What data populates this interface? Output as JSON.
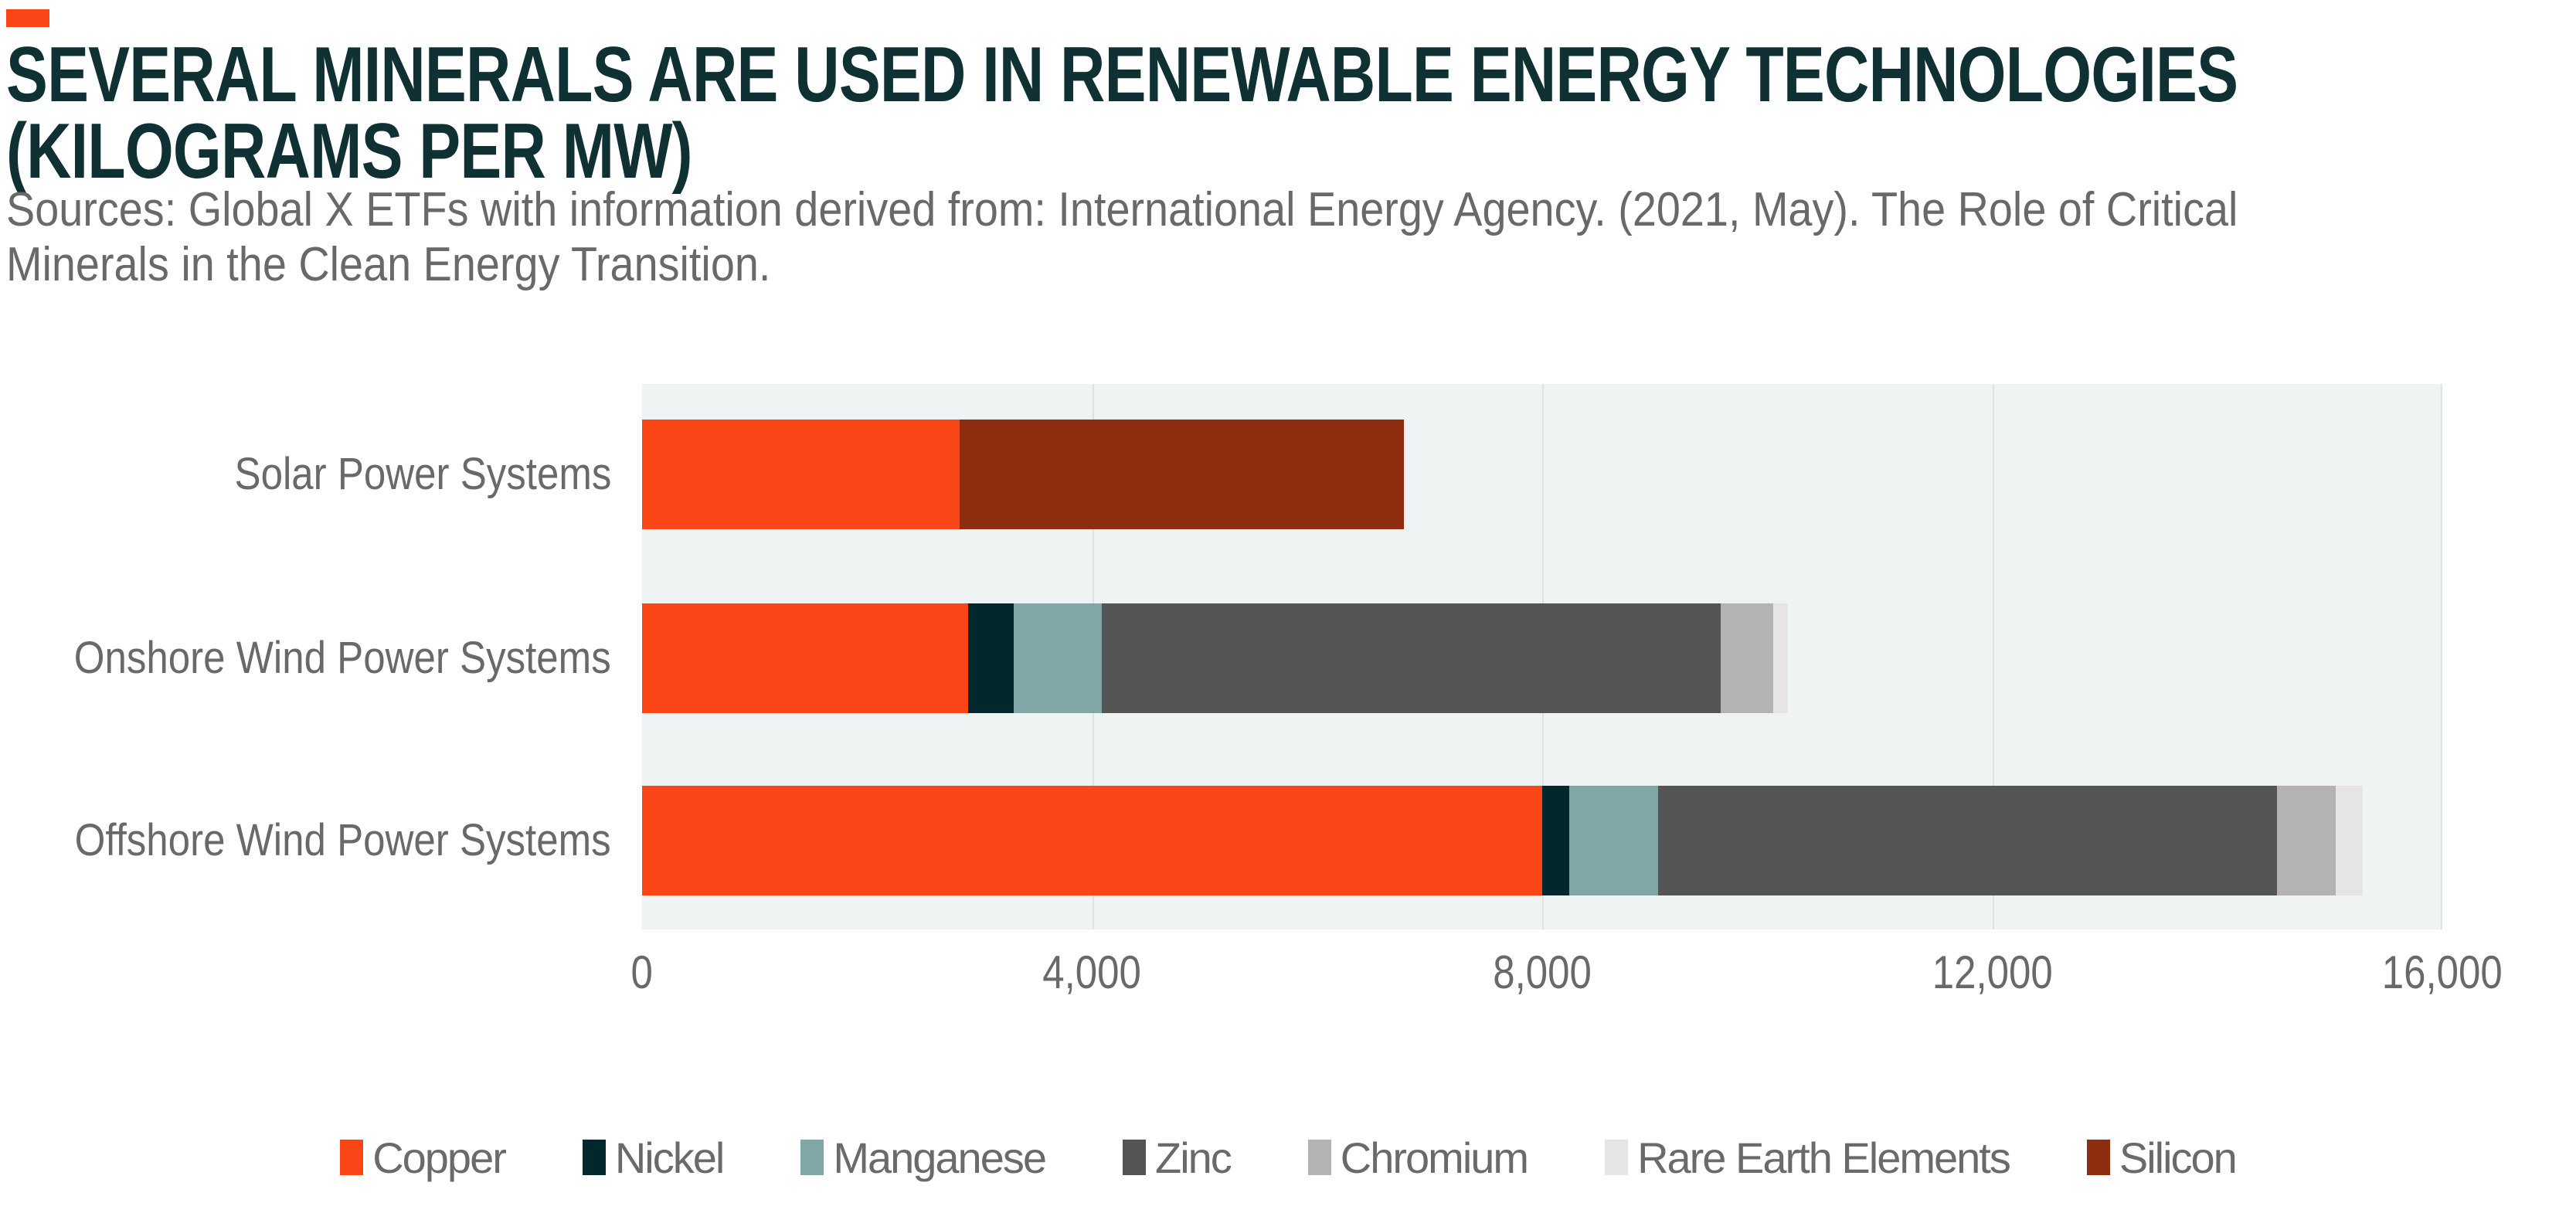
{
  "palette": {
    "accent": "#FA4616",
    "title_text": "#0F3134",
    "gray_text": "#696969",
    "legend_text": "#6A6A6A",
    "plot_background": "#F0F3F4",
    "gridline": "#DEE2E3",
    "page_background": "#FFFFFF"
  },
  "header": {
    "title_line1": "SEVERAL MINERALS ARE USED IN RENEWABLE ENERGY TECHNOLOGIES",
    "title_line2": "(KILOGRAMS PER MW)",
    "source_line1": "Sources: Global X ETFs with information derived from: International Energy Agency. (2021, May). The Role of Critical",
    "source_line2": "Minerals in the Clean Energy Transition."
  },
  "chart_data": {
    "type": "bar",
    "orientation": "horizontal",
    "stacked": true,
    "units": "kilograms per MW",
    "grid": true,
    "legend_position": "bottom",
    "categories": [
      "Solar Power Systems",
      "Onshore Wind Power Systems",
      "Offshore Wind Power Systems"
    ],
    "series": [
      {
        "name": "Copper",
        "color": "#FA4616",
        "pattern": "solid",
        "values": [
          2822,
          2900,
          8000
        ]
      },
      {
        "name": "Nickel",
        "color": "#02282E",
        "pattern": "solid",
        "values": [
          0,
          404,
          240
        ]
      },
      {
        "name": "Manganese",
        "color": "#81A6A6",
        "pattern": "solid",
        "values": [
          0,
          780,
          790
        ]
      },
      {
        "name": "Zinc",
        "color": "#555554",
        "pattern": "solid",
        "values": [
          0,
          5500,
          5500
        ]
      },
      {
        "name": "Chromium",
        "color": "#B4B3B1",
        "pattern": "solid",
        "values": [
          0,
          470,
          525
        ]
      },
      {
        "name": "Rare Earth Elements",
        "color": "#E7E5E3",
        "pattern": "dots",
        "values": [
          0,
          130,
          239
        ]
      },
      {
        "name": "Silicon",
        "color": "#8E2D10",
        "pattern": "solid",
        "values": [
          3948,
          0,
          0
        ]
      }
    ],
    "xlim": [
      0,
      16000
    ],
    "x_ticks": {
      "values": [
        0,
        4000,
        8000,
        12000,
        16000
      ],
      "labels": [
        "0",
        "4,000",
        "8,000",
        "12,000",
        "16,000"
      ]
    }
  }
}
